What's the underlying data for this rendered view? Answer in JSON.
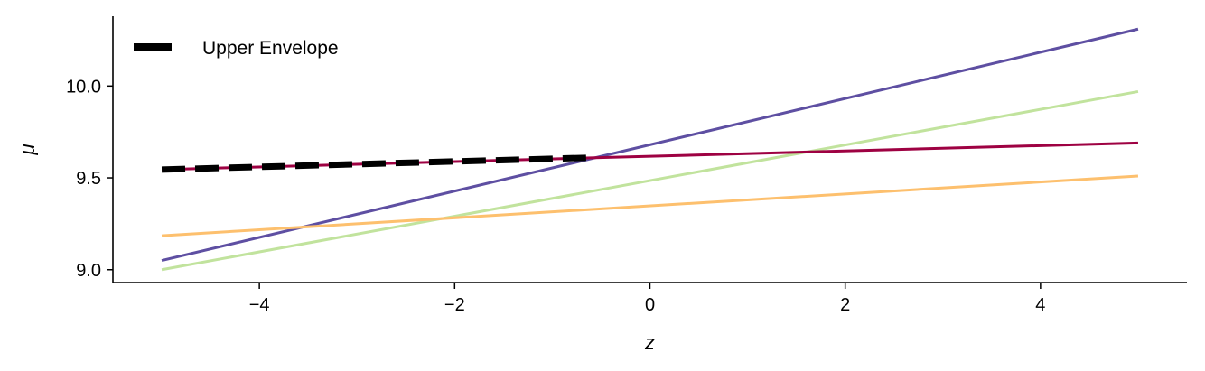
{
  "chart_data": {
    "type": "line",
    "xlabel": "z",
    "ylabel": "μ",
    "xlim": [
      -5.5,
      5.5
    ],
    "ylim": [
      8.93,
      10.38
    ],
    "xticks": [
      -4,
      -2,
      0,
      2,
      4
    ],
    "xtick_labels": [
      "−4",
      "−2",
      "0",
      "2",
      "4"
    ],
    "yticks": [
      9.0,
      9.5,
      10.0
    ],
    "ytick_labels": [
      "9.0",
      "9.5",
      "10.0"
    ],
    "grid": false,
    "legend_position": "top-left",
    "series": [
      {
        "color": "#5e4fa2",
        "x": [
          -5,
          5
        ],
        "y": [
          9.05,
          10.31
        ]
      },
      {
        "color": "#c1e39d",
        "x": [
          -5,
          5
        ],
        "y": [
          9.0,
          9.97
        ]
      },
      {
        "color": "#9e0142",
        "x": [
          -5,
          5
        ],
        "y": [
          9.545,
          9.69
        ]
      },
      {
        "color": "#fdc06e",
        "x": [
          -5,
          5
        ],
        "y": [
          9.185,
          9.51
        ]
      },
      {
        "name": "Upper Envelope",
        "color": "#000000",
        "style": "dashed",
        "x": [
          -5,
          -0.6
        ],
        "y": [
          9.545,
          9.61
        ]
      }
    ]
  }
}
